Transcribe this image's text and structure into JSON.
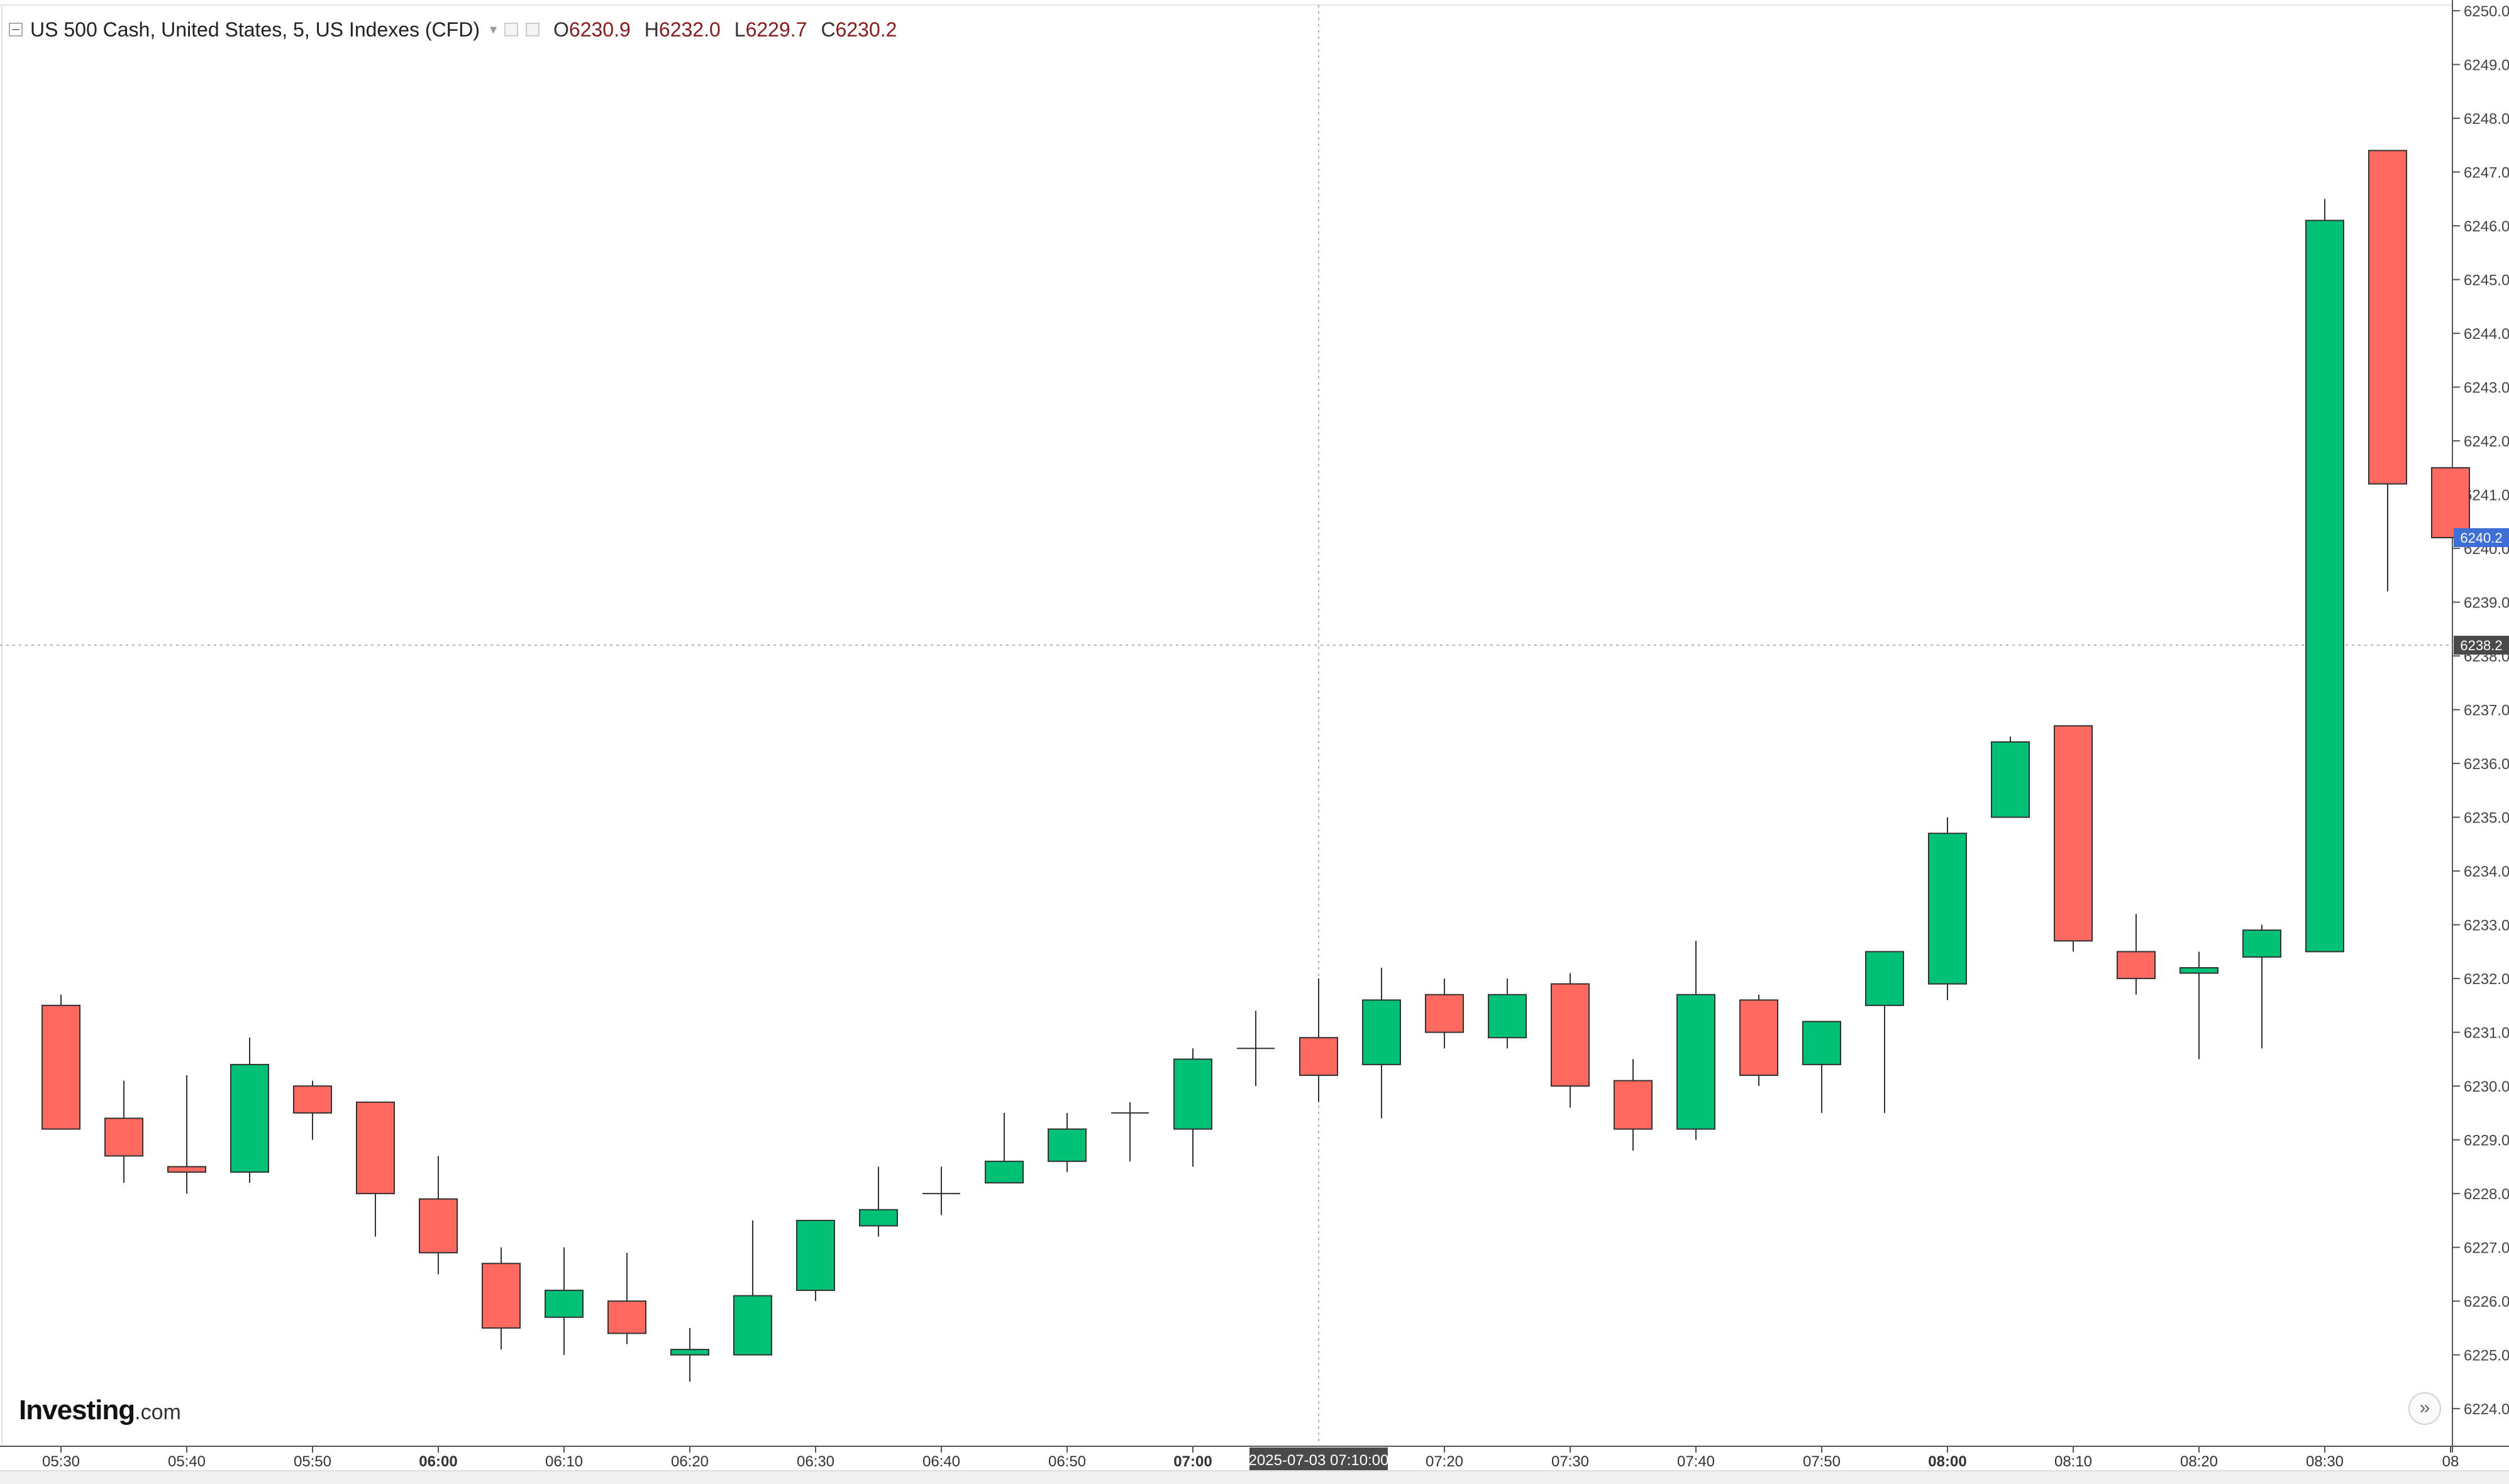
{
  "header": {
    "title": "US 500 Cash, United States, 5, US Indexes (CFD)",
    "open_label": "O",
    "open": "6230.9",
    "high_label": "H",
    "high": "6232.0",
    "low_label": "L",
    "low": "6229.7",
    "close_label": "C",
    "close": "6230.2"
  },
  "logo": {
    "brand": "Investing",
    "suffix": ".com"
  },
  "crosshair": {
    "time_label": "2025-07-03 07:10:00",
    "price_label": "6238.2",
    "price": 6238.2,
    "time": "07:10"
  },
  "last_price": {
    "label": "6240.2",
    "value": 6240.2
  },
  "colors": {
    "up": "#00c176",
    "down": "#ff6960",
    "last_price_bg": "#3d6fd6",
    "crosshair_label_bg": "#4a4a4a"
  },
  "chart_data": {
    "type": "candlestick",
    "interval_minutes": 5,
    "ylim": [
      6223.3,
      6250.2
    ],
    "y_ticks": [
      "6224.0",
      "6225.0",
      "6226.0",
      "6227.0",
      "6228.0",
      "6229.0",
      "6230.0",
      "6231.0",
      "6232.0",
      "6233.0",
      "6234.0",
      "6235.0",
      "6236.0",
      "6237.0",
      "6238.0",
      "6239.0",
      "6240.0",
      "6241.0",
      "6242.0",
      "6243.0",
      "6244.0",
      "6245.0",
      "6246.0",
      "6247.0",
      "6248.0",
      "6249.0",
      "6250.0"
    ],
    "x_ticks": [
      {
        "label": "05:30",
        "index": 0,
        "bold": false
      },
      {
        "label": "05:40",
        "index": 2,
        "bold": false
      },
      {
        "label": "05:50",
        "index": 4,
        "bold": false
      },
      {
        "label": "06:00",
        "index": 6,
        "bold": true
      },
      {
        "label": "06:10",
        "index": 8,
        "bold": false
      },
      {
        "label": "06:20",
        "index": 10,
        "bold": false
      },
      {
        "label": "06:30",
        "index": 12,
        "bold": false
      },
      {
        "label": "06:40",
        "index": 14,
        "bold": false
      },
      {
        "label": "06:50",
        "index": 16,
        "bold": false
      },
      {
        "label": "07:00",
        "index": 18,
        "bold": true
      },
      {
        "label": "07:20",
        "index": 22,
        "bold": false
      },
      {
        "label": "07:30",
        "index": 24,
        "bold": false
      },
      {
        "label": "07:40",
        "index": 26,
        "bold": false
      },
      {
        "label": "07:50",
        "index": 28,
        "bold": false
      },
      {
        "label": "08:00",
        "index": 30,
        "bold": true
      },
      {
        "label": "08:10",
        "index": 32,
        "bold": false
      },
      {
        "label": "08:20",
        "index": 34,
        "bold": false
      },
      {
        "label": "08:30",
        "index": 36,
        "bold": false
      },
      {
        "label": "08",
        "index": 38,
        "bold": false
      }
    ],
    "candles": [
      {
        "t": "05:30",
        "o": 6231.5,
        "h": 6231.7,
        "l": 6229.2,
        "c": 6229.2
      },
      {
        "t": "05:35",
        "o": 6229.4,
        "h": 6230.1,
        "l": 6228.2,
        "c": 6228.7
      },
      {
        "t": "05:40",
        "o": 6228.5,
        "h": 6230.2,
        "l": 6228.0,
        "c": 6228.4
      },
      {
        "t": "05:45",
        "o": 6228.4,
        "h": 6230.9,
        "l": 6228.2,
        "c": 6230.4
      },
      {
        "t": "05:50",
        "o": 6230.0,
        "h": 6230.1,
        "l": 6229.0,
        "c": 6229.5
      },
      {
        "t": "05:55",
        "o": 6229.7,
        "h": 6229.7,
        "l": 6227.2,
        "c": 6228.0
      },
      {
        "t": "06:00",
        "o": 6227.9,
        "h": 6228.7,
        "l": 6226.5,
        "c": 6226.9
      },
      {
        "t": "06:05",
        "o": 6226.7,
        "h": 6227.0,
        "l": 6225.1,
        "c": 6225.5
      },
      {
        "t": "06:10",
        "o": 6225.7,
        "h": 6227.0,
        "l": 6225.0,
        "c": 6226.2
      },
      {
        "t": "06:15",
        "o": 6226.0,
        "h": 6226.9,
        "l": 6225.2,
        "c": 6225.4
      },
      {
        "t": "06:20",
        "o": 6225.0,
        "h": 6225.5,
        "l": 6224.5,
        "c": 6225.1
      },
      {
        "t": "06:25",
        "o": 6225.0,
        "h": 6227.5,
        "l": 6225.0,
        "c": 6226.1
      },
      {
        "t": "06:30",
        "o": 6226.2,
        "h": 6227.5,
        "l": 6226.0,
        "c": 6227.5
      },
      {
        "t": "06:35",
        "o": 6227.4,
        "h": 6228.5,
        "l": 6227.2,
        "c": 6227.7
      },
      {
        "t": "06:40",
        "o": 6228.0,
        "h": 6228.5,
        "l": 6227.6,
        "c": 6228.0
      },
      {
        "t": "06:45",
        "o": 6228.2,
        "h": 6229.5,
        "l": 6228.2,
        "c": 6228.6
      },
      {
        "t": "06:50",
        "o": 6228.6,
        "h": 6229.5,
        "l": 6228.4,
        "c": 6229.2
      },
      {
        "t": "06:55",
        "o": 6229.5,
        "h": 6229.7,
        "l": 6228.6,
        "c": 6229.5
      },
      {
        "t": "07:00",
        "o": 6229.2,
        "h": 6230.7,
        "l": 6228.5,
        "c": 6230.5
      },
      {
        "t": "07:05",
        "o": 6230.7,
        "h": 6231.4,
        "l": 6230.0,
        "c": 6230.7
      },
      {
        "t": "07:10",
        "o": 6230.9,
        "h": 6232.0,
        "l": 6229.7,
        "c": 6230.2
      },
      {
        "t": "07:15",
        "o": 6230.4,
        "h": 6232.2,
        "l": 6229.4,
        "c": 6231.6
      },
      {
        "t": "07:20",
        "o": 6231.7,
        "h": 6232.0,
        "l": 6230.7,
        "c": 6231.0
      },
      {
        "t": "07:25",
        "o": 6230.9,
        "h": 6232.0,
        "l": 6230.7,
        "c": 6231.7
      },
      {
        "t": "07:30",
        "o": 6231.9,
        "h": 6232.1,
        "l": 6229.6,
        "c": 6230.0
      },
      {
        "t": "07:35",
        "o": 6230.1,
        "h": 6230.5,
        "l": 6228.8,
        "c": 6229.2
      },
      {
        "t": "07:40",
        "o": 6229.2,
        "h": 6232.7,
        "l": 6229.0,
        "c": 6231.7
      },
      {
        "t": "07:45",
        "o": 6231.6,
        "h": 6231.7,
        "l": 6230.0,
        "c": 6230.2
      },
      {
        "t": "07:50",
        "o": 6230.4,
        "h": 6231.2,
        "l": 6229.5,
        "c": 6231.2
      },
      {
        "t": "07:55",
        "o": 6231.5,
        "h": 6232.5,
        "l": 6229.5,
        "c": 6232.5
      },
      {
        "t": "08:00",
        "o": 6231.9,
        "h": 6235.0,
        "l": 6231.6,
        "c": 6234.7
      },
      {
        "t": "08:05",
        "o": 6235.0,
        "h": 6236.5,
        "l": 6235.0,
        "c": 6236.4
      },
      {
        "t": "08:10",
        "o": 6236.7,
        "h": 6236.7,
        "l": 6232.5,
        "c": 6232.7
      },
      {
        "t": "08:15",
        "o": 6232.5,
        "h": 6233.2,
        "l": 6231.7,
        "c": 6232.0
      },
      {
        "t": "08:20",
        "o": 6232.1,
        "h": 6232.5,
        "l": 6230.5,
        "c": 6232.2
      },
      {
        "t": "08:25",
        "o": 6232.4,
        "h": 6233.0,
        "l": 6230.7,
        "c": 6232.9
      },
      {
        "t": "08:30",
        "o": 6232.5,
        "h": 6246.5,
        "l": 6232.5,
        "c": 6246.1
      },
      {
        "t": "08:35",
        "o": 6247.4,
        "h": 6247.4,
        "l": 6239.2,
        "c": 6241.2
      },
      {
        "t": "08:40",
        "o": 6241.5,
        "h": 6241.5,
        "l": 6240.2,
        "c": 6240.2
      }
    ]
  }
}
